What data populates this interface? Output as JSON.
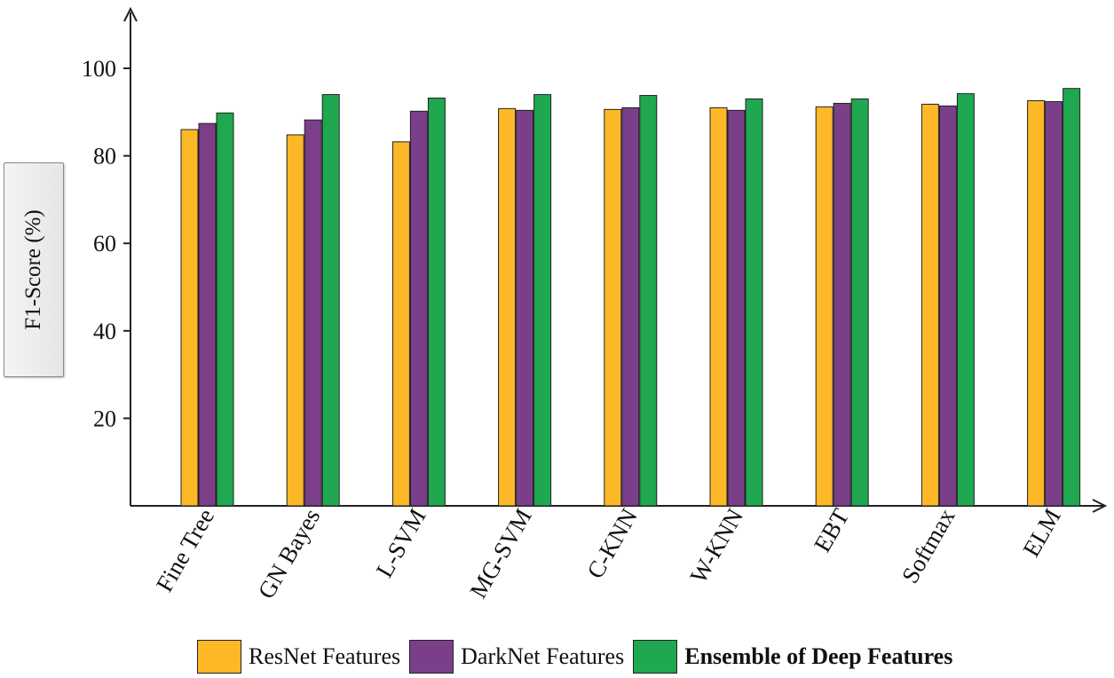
{
  "chart_data": {
    "type": "bar",
    "ylabel": "F1-Score (%)",
    "xlabel": "",
    "ylim": [
      0,
      110
    ],
    "yticks": [
      20,
      40,
      60,
      80,
      100
    ],
    "categories": [
      "Fine Tree",
      "GN Bayes",
      "L-SVM",
      "MG-SVM",
      "C-KNN",
      "W-KNN",
      "EBT",
      "Softmax",
      "ELM"
    ],
    "series": [
      {
        "name": "ResNet Features",
        "color": "#FDB827",
        "values": [
          86,
          84.8,
          83.2,
          90.8,
          90.6,
          91.0,
          91.2,
          91.8,
          92.6
        ]
      },
      {
        "name": "DarkNet Features",
        "color": "#7B3F8A",
        "values": [
          87.4,
          88.2,
          90.2,
          90.4,
          91.0,
          90.4,
          92.0,
          91.4,
          92.4
        ]
      },
      {
        "name": "Ensemble of Deep Features",
        "color": "#1FA84F",
        "values": [
          89.8,
          94.0,
          93.2,
          94.0,
          93.8,
          93.0,
          93.0,
          94.2,
          95.4
        ]
      }
    ],
    "grid": false,
    "legend_position": "bottom"
  }
}
